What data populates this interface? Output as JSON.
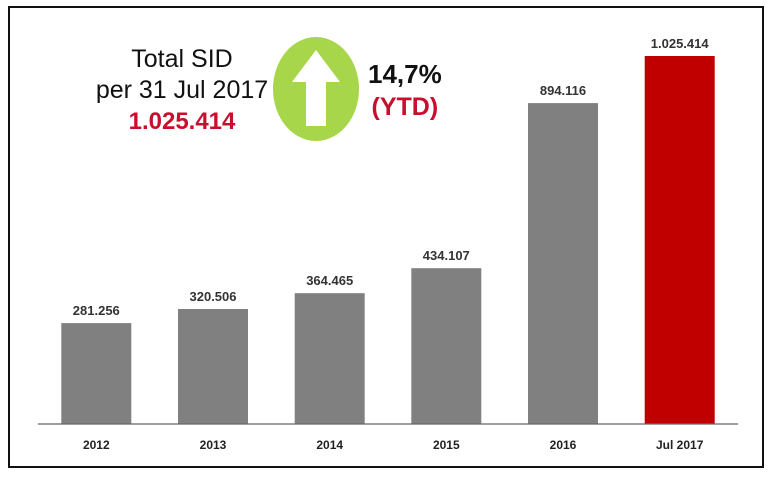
{
  "headline": {
    "title_line1": "Total SID",
    "title_line2": "per 31 Jul 2017",
    "total_value": "1.025.414"
  },
  "growth": {
    "percent": "14,7%",
    "period": "(YTD)",
    "icon": "up-arrow-icon"
  },
  "colors": {
    "bar_default": "#808080",
    "bar_highlight": "#c00000",
    "accent_red": "#c8102e",
    "badge_green": "#a8d64a",
    "axis": "#666666"
  },
  "chart_data": {
    "type": "bar",
    "categories": [
      "2012",
      "2013",
      "2014",
      "2015",
      "2016",
      "Jul 2017"
    ],
    "values": [
      281256,
      320506,
      364465,
      434107,
      894116,
      1025414
    ],
    "value_labels": [
      "281.256",
      "320.506",
      "364.465",
      "434.107",
      "894.116",
      "1.025.414"
    ],
    "highlight_index": 5,
    "title": "",
    "xlabel": "",
    "ylabel": "",
    "ylim": [
      0,
      1025414
    ],
    "grid": false,
    "legend": "none"
  }
}
